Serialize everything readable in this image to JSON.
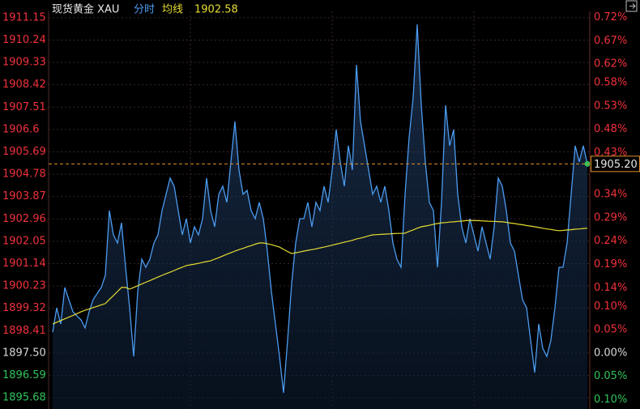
{
  "chart_data": {
    "type": "line",
    "header": {
      "name": "现货黄金 XAU",
      "mode": "分时",
      "ma_label": "均线",
      "ma_value": "1902.58"
    },
    "base": 1897.5,
    "ylim": [
      1895.22,
      1911.41
    ],
    "yticks": [
      1911.15,
      1910.24,
      1909.33,
      1908.42,
      1907.51,
      1906.6,
      1905.69,
      1904.78,
      1903.87,
      1902.96,
      1902.05,
      1901.14,
      {
        "value": 1900.23,
        "label": "1900.23"
      },
      1899.32,
      1898.41,
      {
        "value": 1897.5,
        "label": "1897.50"
      },
      1896.59,
      1895.68
    ],
    "y2lim": [
      -0.1202,
      0.7331
    ],
    "y2ticks": [
      {
        "value": 0.72,
        "label": "0.72%"
      },
      {
        "value": 0.67,
        "label": "0.67%"
      },
      {
        "value": 0.62,
        "label": "0.62%"
      },
      {
        "value": 0.58,
        "label": "0.58%"
      },
      {
        "value": 0.53,
        "label": "0.53%"
      },
      {
        "value": 0.48,
        "label": "0.48%"
      },
      {
        "value": 0.43,
        "label": "0.43%"
      },
      {
        "value": 0.34,
        "label": "0.34%"
      },
      {
        "value": 0.29,
        "label": "0.29%"
      },
      {
        "value": 0.24,
        "label": "0.24%"
      },
      {
        "value": 0.19,
        "label": "0.19%"
      },
      {
        "value": 0.14,
        "label": "0.14%"
      },
      {
        "value": 0.1,
        "label": "0.10%"
      },
      {
        "value": 0.05,
        "label": "0.05%"
      },
      {
        "value": 0,
        "label": "0.00%"
      },
      {
        "value": -0.05,
        "label": "0.05%"
      },
      {
        "value": -0.1,
        "label": "0.10%"
      }
    ],
    "up_color": "#f0323c",
    "down_color": "#2fc35a",
    "flat_color": "#d8d8d8",
    "grid": true,
    "last_price": {
      "value": 1905.2,
      "label": "1905.20"
    },
    "series": [
      {
        "color": "#4b9bf0",
        "values": [
          1898.35,
          1899.34,
          1898.68,
          1900.17,
          1899.67,
          1899.18,
          1899.01,
          1898.85,
          1898.52,
          1899.18,
          1899.67,
          1899.93,
          1900.17,
          1900.66,
          1903.3,
          1902.31,
          1901.98,
          1902.8,
          1900.99,
          1899.34,
          1897.36,
          1900.0,
          1901.32,
          1900.99,
          1901.32,
          1901.98,
          1902.31,
          1903.3,
          1903.96,
          1904.62,
          1904.29,
          1903.3,
          1902.31,
          1902.97,
          1901.98,
          1902.64,
          1902.31,
          1902.97,
          1904.62,
          1903.3,
          1902.64,
          1903.96,
          1904.29,
          1903.63,
          1905.28,
          1906.93,
          1904.95,
          1903.96,
          1904.12,
          1903.3,
          1902.97,
          1903.63,
          1902.97,
          1901.65,
          1900.0,
          1898.68,
          1897.36,
          1895.88,
          1898.02,
          1900.33,
          1901.98,
          1902.97,
          1902.97,
          1903.63,
          1902.64,
          1903.63,
          1903.3,
          1904.29,
          1903.63,
          1904.95,
          1906.6,
          1905.28,
          1904.29,
          1905.94,
          1904.95,
          1909.23,
          1906.93,
          1905.94,
          1904.95,
          1903.96,
          1904.29,
          1903.63,
          1904.29,
          1903.3,
          1901.98,
          1901.32,
          1900.99,
          1903.96,
          1906.27,
          1907.91,
          1910.88,
          1907.59,
          1905.28,
          1903.63,
          1903.3,
          1900.99,
          1903.63,
          1907.59,
          1905.94,
          1906.6,
          1903.96,
          1902.64,
          1901.98,
          1902.97,
          1902.31,
          1901.65,
          1902.64,
          1901.98,
          1901.32,
          1902.64,
          1904.62,
          1904.29,
          1903.3,
          1901.98,
          1901.65,
          1900.66,
          1899.67,
          1899.34,
          1898.02,
          1896.7,
          1898.68,
          1897.69,
          1897.36,
          1898.02,
          1899.34,
          1900.99,
          1900.99,
          1901.98,
          1903.96,
          1905.94,
          1905.28,
          1905.94,
          1905.2
        ]
      },
      {
        "color": "#e6dc32",
        "values": [
          1898.68,
          1898.75,
          1898.82,
          1898.89,
          1898.96,
          1899.03,
          1899.1,
          1899.18,
          1899.24,
          1899.29,
          1899.35,
          1899.4,
          1899.46,
          1899.51,
          1899.68,
          1899.84,
          1900.0,
          1900.17,
          1900.17,
          1900.1,
          1900.17,
          1900.24,
          1900.31,
          1900.38,
          1900.45,
          1900.52,
          1900.59,
          1900.66,
          1900.73,
          1900.79,
          1900.86,
          1900.93,
          1900.99,
          1901.06,
          1901.09,
          1901.12,
          1901.15,
          1901.19,
          1901.22,
          1901.25,
          1901.32,
          1901.38,
          1901.45,
          1901.52,
          1901.58,
          1901.65,
          1901.71,
          1901.76,
          1901.82,
          1901.87,
          1901.93,
          1901.98,
          1901.98,
          1901.95,
          1901.91,
          1901.86,
          1901.81,
          1901.72,
          1901.63,
          1901.55,
          1901.58,
          1901.61,
          1901.65,
          1901.68,
          1901.71,
          1901.74,
          1901.78,
          1901.81,
          1901.85,
          1901.89,
          1901.93,
          1901.97,
          1902.01,
          1902.05,
          1902.09,
          1902.14,
          1902.18,
          1902.22,
          1902.27,
          1902.31,
          1902.32,
          1902.33,
          1902.34,
          1902.35,
          1902.36,
          1902.37,
          1902.37,
          1902.38,
          1902.45,
          1902.51,
          1902.58,
          1902.64,
          1902.67,
          1902.7,
          1902.74,
          1902.77,
          1902.8,
          1902.81,
          1902.83,
          1902.84,
          1902.86,
          1902.87,
          1902.89,
          1902.9,
          1902.89,
          1902.89,
          1902.88,
          1902.87,
          1902.86,
          1902.86,
          1902.85,
          1902.84,
          1902.82,
          1902.79,
          1902.77,
          1902.74,
          1902.72,
          1902.69,
          1902.67,
          1902.64,
          1902.61,
          1902.58,
          1902.55,
          1902.53,
          1902.5,
          1902.48,
          1902.49,
          1902.51,
          1902.52,
          1902.54,
          1902.55,
          1902.57,
          1902.58
        ]
      }
    ]
  }
}
